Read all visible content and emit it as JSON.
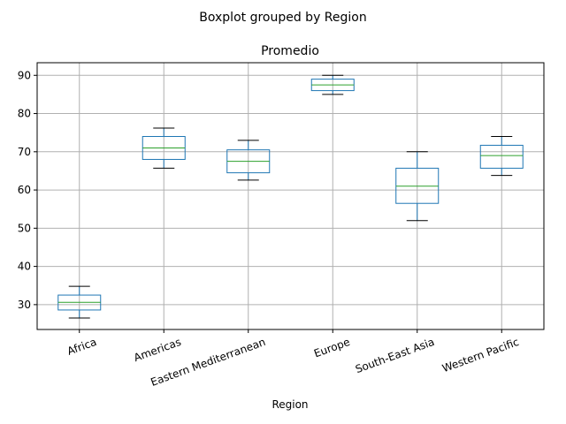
{
  "chart_data": {
    "type": "boxplot",
    "suptitle": "Boxplot grouped by Region",
    "title": "Promedio",
    "xlabel": "Region",
    "ylabel": "",
    "ylim": [
      23.5,
      93.3
    ],
    "yticks": [
      30,
      40,
      50,
      60,
      70,
      80,
      90
    ],
    "grid": true,
    "categories": [
      "Africa",
      "Americas",
      "Eastern Mediterranean",
      "Europe",
      "South-East Asia",
      "Western Pacific"
    ],
    "boxes": [
      {
        "category": "Africa",
        "whisker_low": 26.5,
        "q1": 28.6,
        "median": 30.6,
        "q3": 32.5,
        "whisker_high": 34.8
      },
      {
        "category": "Americas",
        "whisker_low": 65.7,
        "q1": 68.0,
        "median": 71.0,
        "q3": 74.0,
        "whisker_high": 76.2
      },
      {
        "category": "Eastern Mediterranean",
        "whisker_low": 62.6,
        "q1": 64.5,
        "median": 67.5,
        "q3": 70.5,
        "whisker_high": 73.0
      },
      {
        "category": "Europe",
        "whisker_low": 85.0,
        "q1": 86.0,
        "median": 87.5,
        "q3": 89.0,
        "whisker_high": 90.0
      },
      {
        "category": "South-East Asia",
        "whisker_low": 52.0,
        "q1": 56.5,
        "median": 61.0,
        "q3": 65.7,
        "whisker_high": 70.0
      },
      {
        "category": "Western Pacific",
        "whisker_low": 63.8,
        "q1": 65.7,
        "median": 69.0,
        "q3": 71.7,
        "whisker_high": 74.0
      }
    ]
  }
}
